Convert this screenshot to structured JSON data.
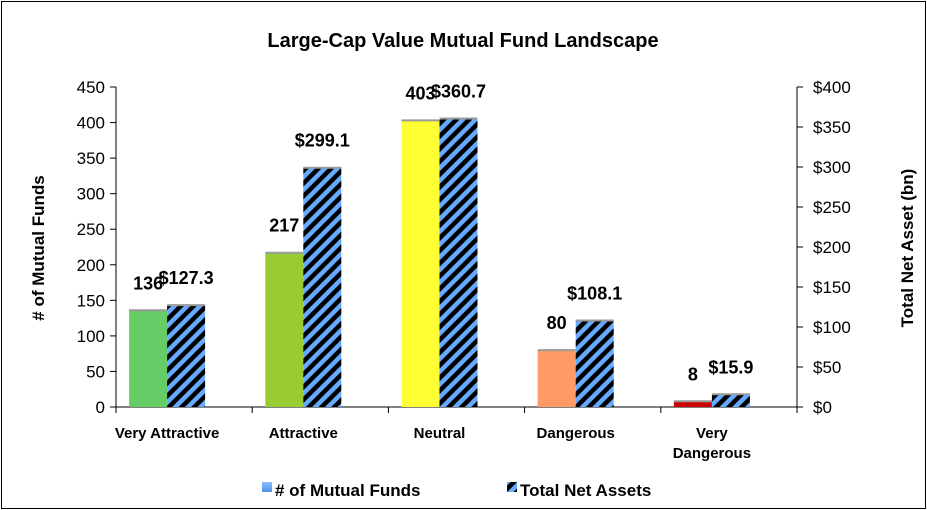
{
  "chart_data": {
    "type": "bar",
    "title": "Large-Cap Value Mutual Fund Landscape",
    "categories": [
      [
        "Very Attractive"
      ],
      [
        "Attractive"
      ],
      [
        "Neutral"
      ],
      [
        "Dangerous"
      ],
      [
        "Very",
        "Dangerous"
      ]
    ],
    "category_labels": [
      "Very Attractive",
      "Attractive",
      "Neutral",
      "Dangerous",
      "Very Dangerous"
    ],
    "series": [
      {
        "name": "# of Mutual Funds",
        "axis": "left",
        "values": [
          136,
          217,
          403,
          80,
          8
        ],
        "labels": [
          "136",
          "217",
          "403",
          "80",
          "8"
        ],
        "colors": [
          "#66cc66",
          "#99cc33",
          "#ffff33",
          "#ff9966",
          "#cc0000"
        ]
      },
      {
        "name": "Total Net Assets",
        "axis": "right",
        "values": [
          127.3,
          299.1,
          360.7,
          108.1,
          15.9
        ],
        "labels": [
          "$127.3",
          "$299.1",
          "$360.7",
          "$108.1",
          "$15.9"
        ],
        "colors": [
          "#66aaff",
          "#000000"
        ]
      }
    ],
    "ylabel": "# of Mutual Funds",
    "ylim": [
      0,
      450
    ],
    "yticks": [
      "0",
      "50",
      "100",
      "150",
      "200",
      "250",
      "300",
      "350",
      "400",
      "450"
    ],
    "y2label": "Total Net Asset (bn)",
    "y2lim": [
      0,
      400
    ],
    "y2ticks": [
      "$0",
      "$50",
      "$100",
      "$150",
      "$200",
      "$250",
      "$300",
      "$350",
      "$400"
    ],
    "grid": false,
    "legend_position": "bottom"
  }
}
